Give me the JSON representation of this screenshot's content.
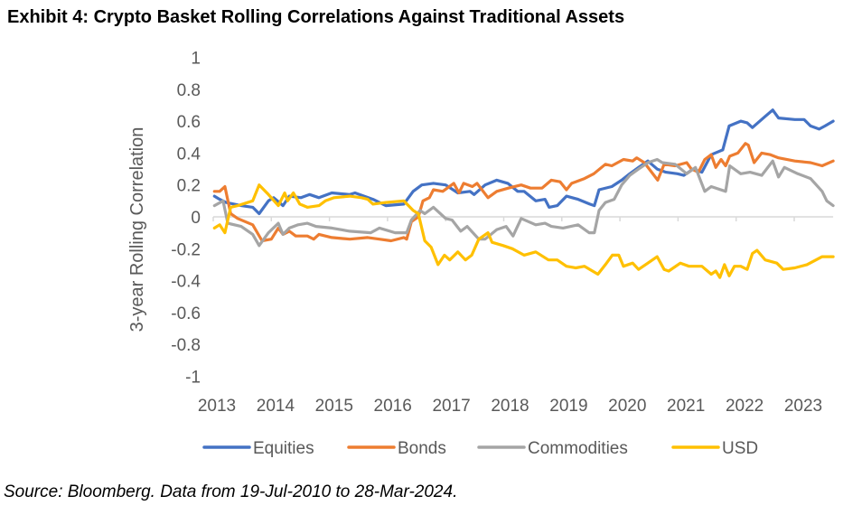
{
  "title": "Exhibit 4: Crypto Basket Rolling Correlations Against Traditional Assets",
  "source": "Source: Bloomberg. Data from 19-Jul-2010 to 28-Mar-2024.",
  "chart_data": {
    "type": "line",
    "title": "Exhibit 4: Crypto Basket Rolling Correlations Against Traditional Assets",
    "xlabel": "",
    "ylabel": "3-year Rolling Correlation",
    "xlim": [
      2013,
      2023.67
    ],
    "ylim": [
      -1,
      1
    ],
    "x_ticks": [
      "2013",
      "2014",
      "2015",
      "2016",
      "2017",
      "2018",
      "2019",
      "2020",
      "2021",
      "2022",
      "2023"
    ],
    "y_ticks": [
      "1",
      "0.8",
      "0.6",
      "0.4",
      "0.2",
      "0",
      "-0.2",
      "-0.4",
      "-0.6",
      "-0.8",
      "-1"
    ],
    "y_tick_values": [
      1,
      0.8,
      0.6,
      0.4,
      0.2,
      0,
      -0.2,
      -0.4,
      -0.6,
      -0.8,
      -1
    ],
    "grid": false,
    "legend_position": "bottom",
    "series": [
      {
        "name": "Equities",
        "color": "#4472C4",
        "points": [
          [
            2013.02,
            0.13
          ],
          [
            2013.11,
            0.11
          ],
          [
            2013.22,
            0.09
          ],
          [
            2013.48,
            0.07
          ],
          [
            2013.68,
            0.06
          ],
          [
            2013.79,
            0.02
          ],
          [
            2013.95,
            0.1
          ],
          [
            2014.04,
            0.12
          ],
          [
            2014.2,
            0.07
          ],
          [
            2014.31,
            0.13
          ],
          [
            2014.51,
            0.12
          ],
          [
            2014.66,
            0.14
          ],
          [
            2014.82,
            0.12
          ],
          [
            2015.04,
            0.15
          ],
          [
            2015.35,
            0.14
          ],
          [
            2015.44,
            0.15
          ],
          [
            2015.75,
            0.11
          ],
          [
            2015.97,
            0.07
          ],
          [
            2016.28,
            0.08
          ],
          [
            2016.44,
            0.16
          ],
          [
            2016.59,
            0.2
          ],
          [
            2016.79,
            0.21
          ],
          [
            2017.0,
            0.2
          ],
          [
            2017.21,
            0.15
          ],
          [
            2017.42,
            0.16
          ],
          [
            2017.49,
            0.14
          ],
          [
            2017.68,
            0.2
          ],
          [
            2017.88,
            0.23
          ],
          [
            2018.07,
            0.21
          ],
          [
            2018.24,
            0.16
          ],
          [
            2018.35,
            0.16
          ],
          [
            2018.55,
            0.1
          ],
          [
            2018.71,
            0.11
          ],
          [
            2018.78,
            0.06
          ],
          [
            2018.92,
            0.07
          ],
          [
            2019.08,
            0.13
          ],
          [
            2019.28,
            0.11
          ],
          [
            2019.48,
            0.08
          ],
          [
            2019.56,
            0.07
          ],
          [
            2019.64,
            0.17
          ],
          [
            2019.86,
            0.19
          ],
          [
            2020.03,
            0.23
          ],
          [
            2020.17,
            0.27
          ],
          [
            2020.32,
            0.31
          ],
          [
            2020.48,
            0.35
          ],
          [
            2020.64,
            0.3
          ],
          [
            2020.79,
            0.28
          ],
          [
            2020.99,
            0.27
          ],
          [
            2021.1,
            0.26
          ],
          [
            2021.26,
            0.3
          ],
          [
            2021.41,
            0.28
          ],
          [
            2021.57,
            0.39
          ],
          [
            2021.77,
            0.42
          ],
          [
            2021.88,
            0.57
          ],
          [
            2022.08,
            0.6
          ],
          [
            2022.19,
            0.59
          ],
          [
            2022.28,
            0.56
          ],
          [
            2022.5,
            0.63
          ],
          [
            2022.63,
            0.67
          ],
          [
            2022.73,
            0.62
          ],
          [
            2023.01,
            0.61
          ],
          [
            2023.17,
            0.61
          ],
          [
            2023.28,
            0.57
          ],
          [
            2023.43,
            0.55
          ],
          [
            2023.53,
            0.57
          ],
          [
            2023.67,
            0.6
          ]
        ]
      },
      {
        "name": "Bonds",
        "color": "#ED7D31",
        "points": [
          [
            2013.02,
            0.16
          ],
          [
            2013.11,
            0.16
          ],
          [
            2013.2,
            0.19
          ],
          [
            2013.3,
            0.02
          ],
          [
            2013.42,
            -0.01
          ],
          [
            2013.68,
            -0.05
          ],
          [
            2013.84,
            -0.15
          ],
          [
            2014.0,
            -0.14
          ],
          [
            2014.12,
            -0.07
          ],
          [
            2014.2,
            -0.11
          ],
          [
            2014.31,
            -0.09
          ],
          [
            2014.42,
            -0.12
          ],
          [
            2014.62,
            -0.12
          ],
          [
            2014.73,
            -0.14
          ],
          [
            2014.82,
            -0.11
          ],
          [
            2015.04,
            -0.13
          ],
          [
            2015.35,
            -0.14
          ],
          [
            2015.66,
            -0.13
          ],
          [
            2015.86,
            -0.14
          ],
          [
            2016.06,
            -0.15
          ],
          [
            2016.28,
            -0.13
          ],
          [
            2016.33,
            -0.14
          ],
          [
            2016.41,
            -0.03
          ],
          [
            2016.53,
            0.0
          ],
          [
            2016.61,
            0.1
          ],
          [
            2016.72,
            0.12
          ],
          [
            2016.79,
            0.17
          ],
          [
            2016.95,
            0.16
          ],
          [
            2017.14,
            0.21
          ],
          [
            2017.23,
            0.15
          ],
          [
            2017.31,
            0.21
          ],
          [
            2017.46,
            0.19
          ],
          [
            2017.54,
            0.21
          ],
          [
            2017.73,
            0.12
          ],
          [
            2017.88,
            0.16
          ],
          [
            2018.08,
            0.18
          ],
          [
            2018.3,
            0.2
          ],
          [
            2018.46,
            0.18
          ],
          [
            2018.66,
            0.18
          ],
          [
            2018.82,
            0.23
          ],
          [
            2018.97,
            0.22
          ],
          [
            2019.08,
            0.17
          ],
          [
            2019.17,
            0.21
          ],
          [
            2019.39,
            0.24
          ],
          [
            2019.55,
            0.27
          ],
          [
            2019.75,
            0.33
          ],
          [
            2019.86,
            0.32
          ],
          [
            2020.06,
            0.36
          ],
          [
            2020.22,
            0.35
          ],
          [
            2020.29,
            0.37
          ],
          [
            2020.42,
            0.34
          ],
          [
            2020.65,
            0.23
          ],
          [
            2020.76,
            0.33
          ],
          [
            2020.95,
            0.32
          ],
          [
            2021.15,
            0.34
          ],
          [
            2021.23,
            0.3
          ],
          [
            2021.35,
            0.28
          ],
          [
            2021.46,
            0.36
          ],
          [
            2021.57,
            0.39
          ],
          [
            2021.65,
            0.31
          ],
          [
            2021.74,
            0.36
          ],
          [
            2021.82,
            0.32
          ],
          [
            2021.89,
            0.38
          ],
          [
            2022.03,
            0.4
          ],
          [
            2022.16,
            0.46
          ],
          [
            2022.21,
            0.45
          ],
          [
            2022.31,
            0.34
          ],
          [
            2022.44,
            0.4
          ],
          [
            2022.59,
            0.39
          ],
          [
            2022.73,
            0.37
          ],
          [
            2023.01,
            0.35
          ],
          [
            2023.28,
            0.34
          ],
          [
            2023.48,
            0.32
          ],
          [
            2023.67,
            0.35
          ]
        ]
      },
      {
        "name": "Commodities",
        "color": "#A5A5A5",
        "points": [
          [
            2013.02,
            0.07
          ],
          [
            2013.17,
            0.1
          ],
          [
            2013.25,
            -0.04
          ],
          [
            2013.48,
            -0.06
          ],
          [
            2013.68,
            -0.11
          ],
          [
            2013.79,
            -0.18
          ],
          [
            2013.95,
            -0.1
          ],
          [
            2014.12,
            -0.04
          ],
          [
            2014.2,
            -0.11
          ],
          [
            2014.31,
            -0.07
          ],
          [
            2014.46,
            -0.05
          ],
          [
            2014.62,
            -0.04
          ],
          [
            2014.77,
            -0.06
          ],
          [
            2015.04,
            -0.07
          ],
          [
            2015.35,
            -0.09
          ],
          [
            2015.71,
            -0.1
          ],
          [
            2015.86,
            -0.07
          ],
          [
            2016.13,
            -0.1
          ],
          [
            2016.33,
            -0.1
          ],
          [
            2016.41,
            -0.02
          ],
          [
            2016.56,
            0.04
          ],
          [
            2016.64,
            0.02
          ],
          [
            2016.79,
            0.06
          ],
          [
            2017.0,
            -0.01
          ],
          [
            2017.11,
            -0.02
          ],
          [
            2017.26,
            -0.09
          ],
          [
            2017.37,
            -0.06
          ],
          [
            2017.57,
            -0.14
          ],
          [
            2017.68,
            -0.14
          ],
          [
            2017.88,
            -0.08
          ],
          [
            2018.04,
            -0.06
          ],
          [
            2018.16,
            -0.12
          ],
          [
            2018.3,
            -0.01
          ],
          [
            2018.55,
            -0.05
          ],
          [
            2018.71,
            -0.04
          ],
          [
            2018.82,
            -0.06
          ],
          [
            2019.02,
            -0.07
          ],
          [
            2019.28,
            -0.05
          ],
          [
            2019.47,
            -0.1
          ],
          [
            2019.56,
            -0.1
          ],
          [
            2019.64,
            0.04
          ],
          [
            2019.75,
            0.09
          ],
          [
            2019.9,
            0.11
          ],
          [
            2020.03,
            0.2
          ],
          [
            2020.17,
            0.26
          ],
          [
            2020.32,
            0.3
          ],
          [
            2020.48,
            0.34
          ],
          [
            2020.64,
            0.36
          ],
          [
            2020.73,
            0.34
          ],
          [
            2020.95,
            0.33
          ],
          [
            2021.15,
            0.27
          ],
          [
            2021.3,
            0.31
          ],
          [
            2021.46,
            0.16
          ],
          [
            2021.57,
            0.19
          ],
          [
            2021.82,
            0.16
          ],
          [
            2021.89,
            0.32
          ],
          [
            2022.08,
            0.27
          ],
          [
            2022.24,
            0.28
          ],
          [
            2022.44,
            0.26
          ],
          [
            2022.63,
            0.35
          ],
          [
            2022.73,
            0.25
          ],
          [
            2022.83,
            0.31
          ],
          [
            2023.06,
            0.27
          ],
          [
            2023.28,
            0.24
          ],
          [
            2023.48,
            0.16
          ],
          [
            2023.56,
            0.1
          ],
          [
            2023.67,
            0.07
          ]
        ]
      },
      {
        "name": "USD",
        "color": "#FFC000",
        "points": [
          [
            2013.02,
            -0.07
          ],
          [
            2013.11,
            -0.05
          ],
          [
            2013.2,
            -0.1
          ],
          [
            2013.3,
            0.06
          ],
          [
            2013.42,
            0.07
          ],
          [
            2013.68,
            0.1
          ],
          [
            2013.79,
            0.2
          ],
          [
            2013.95,
            0.14
          ],
          [
            2014.12,
            0.07
          ],
          [
            2014.23,
            0.15
          ],
          [
            2014.28,
            0.1
          ],
          [
            2014.38,
            0.15
          ],
          [
            2014.49,
            0.08
          ],
          [
            2014.62,
            0.06
          ],
          [
            2014.82,
            0.07
          ],
          [
            2014.93,
            0.1
          ],
          [
            2015.08,
            0.12
          ],
          [
            2015.35,
            0.13
          ],
          [
            2015.55,
            0.12
          ],
          [
            2015.66,
            0.11
          ],
          [
            2015.75,
            0.08
          ],
          [
            2015.97,
            0.09
          ],
          [
            2016.28,
            0.1
          ],
          [
            2016.44,
            0.04
          ],
          [
            2016.53,
            0.02
          ],
          [
            2016.64,
            -0.15
          ],
          [
            2016.75,
            -0.19
          ],
          [
            2016.87,
            -0.3
          ],
          [
            2016.98,
            -0.24
          ],
          [
            2017.07,
            -0.27
          ],
          [
            2017.21,
            -0.22
          ],
          [
            2017.34,
            -0.27
          ],
          [
            2017.45,
            -0.24
          ],
          [
            2017.57,
            -0.14
          ],
          [
            2017.73,
            -0.1
          ],
          [
            2017.8,
            -0.16
          ],
          [
            2017.99,
            -0.18
          ],
          [
            2018.15,
            -0.2
          ],
          [
            2018.35,
            -0.24
          ],
          [
            2018.55,
            -0.22
          ],
          [
            2018.77,
            -0.27
          ],
          [
            2018.92,
            -0.27
          ],
          [
            2019.08,
            -0.31
          ],
          [
            2019.24,
            -0.32
          ],
          [
            2019.39,
            -0.31
          ],
          [
            2019.62,
            -0.36
          ],
          [
            2019.75,
            -0.3
          ],
          [
            2019.87,
            -0.24
          ],
          [
            2019.98,
            -0.24
          ],
          [
            2020.06,
            -0.31
          ],
          [
            2020.22,
            -0.29
          ],
          [
            2020.32,
            -0.33
          ],
          [
            2020.48,
            -0.29
          ],
          [
            2020.64,
            -0.25
          ],
          [
            2020.76,
            -0.33
          ],
          [
            2020.84,
            -0.34
          ],
          [
            2021.04,
            -0.29
          ],
          [
            2021.19,
            -0.31
          ],
          [
            2021.41,
            -0.31
          ],
          [
            2021.57,
            -0.36
          ],
          [
            2021.65,
            -0.34
          ],
          [
            2021.72,
            -0.38
          ],
          [
            2021.8,
            -0.3
          ],
          [
            2021.88,
            -0.37
          ],
          [
            2021.97,
            -0.31
          ],
          [
            2022.08,
            -0.31
          ],
          [
            2022.19,
            -0.33
          ],
          [
            2022.28,
            -0.23
          ],
          [
            2022.36,
            -0.21
          ],
          [
            2022.5,
            -0.27
          ],
          [
            2022.7,
            -0.29
          ],
          [
            2022.81,
            -0.33
          ],
          [
            2023.01,
            -0.32
          ],
          [
            2023.22,
            -0.3
          ],
          [
            2023.48,
            -0.25
          ],
          [
            2023.67,
            -0.25
          ]
        ]
      }
    ]
  }
}
